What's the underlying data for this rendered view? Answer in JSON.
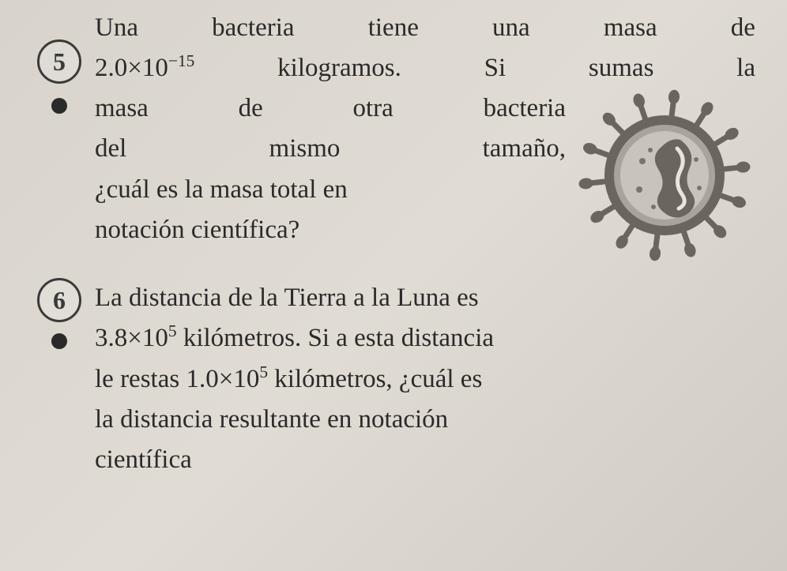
{
  "problem5": {
    "number": "5",
    "line1_words": [
      "Una",
      "bacteria",
      "tiene",
      "una",
      "masa",
      "de"
    ],
    "line2_pre": "2.0×10",
    "line2_exp": "−15",
    "line2_rest_words": [
      "kilogramos.",
      "Si",
      "sumas",
      "la"
    ],
    "line3_words": [
      "masa",
      "de",
      "otra",
      "bacteria"
    ],
    "line4_words": [
      "del",
      "mismo",
      "tamaño,"
    ],
    "line5": "¿cuál es la masa total en",
    "line6": "notación científica?",
    "illustration": {
      "body_fill": "#a8a49c",
      "body_stroke": "#6b6560",
      "inner_fill": "#c8c4bc",
      "spike_fill": "#6b6560",
      "worm_stroke": "#e8e4dc",
      "dot_fill": "#7a746e"
    }
  },
  "problem6": {
    "number": "6",
    "line1": "La distancia de la Tierra a la Luna es",
    "line2_pre": "3.8×10",
    "line2_exp": "5",
    "line2_post": " kilómetros. Si a esta distancia",
    "line3_pre": "le restas 1.0×10",
    "line3_exp": "5",
    "line3_post": " kilómetros, ¿cuál es",
    "line4": "la distancia resultante en notación",
    "line5": "científica"
  }
}
